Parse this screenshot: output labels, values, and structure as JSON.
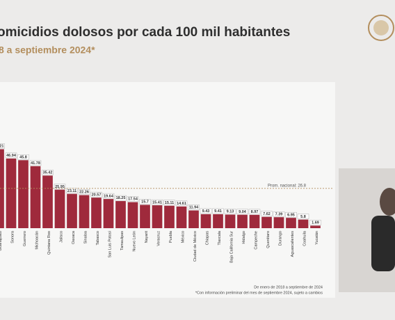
{
  "chart_data": {
    "type": "bar",
    "title": "omicidios dolosos por cada 100 mil habitantes",
    "subtitle": "8 a septiembre 2024*",
    "categories": [
      "Guanajuato",
      "Sonora",
      "Guerrero",
      "Michoacán",
      "Quintana Roo",
      "Jalisco",
      "Oaxaca",
      "Sinaloa",
      "Tabasco",
      "San Luis Potosí",
      "Tamaulipas",
      "Nuevo León",
      "Nayarit",
      "Veracruz",
      "Puebla",
      "México",
      "Ciudad de México",
      "Chiapas",
      "Tlaxcala",
      "Baja California Sur",
      "Hidalgo",
      "Campeche",
      "Querétaro",
      "Durango",
      "Aguascalientes",
      "Coahuila",
      "Yucatán"
    ],
    "values": [
      53.21,
      46.94,
      45.8,
      41.78,
      35.42,
      25.95,
      23.11,
      22.26,
      20.57,
      19.64,
      18.25,
      17.54,
      15.7,
      15.41,
      15.11,
      14.61,
      11.94,
      9.43,
      9.41,
      9.13,
      9.04,
      8.97,
      7.62,
      7.39,
      6.95,
      5.8,
      1.69
    ],
    "color": "#9f2a3c",
    "ylim": [
      0,
      60
    ],
    "reference_line": {
      "value": 26.8,
      "label": "Prom. nacional: 26.8"
    },
    "notes": [
      "De enero de 2018 a septiembre de 2024",
      "*Con información preliminar del mes de septiembre 2024, sujeto a cambios"
    ]
  }
}
